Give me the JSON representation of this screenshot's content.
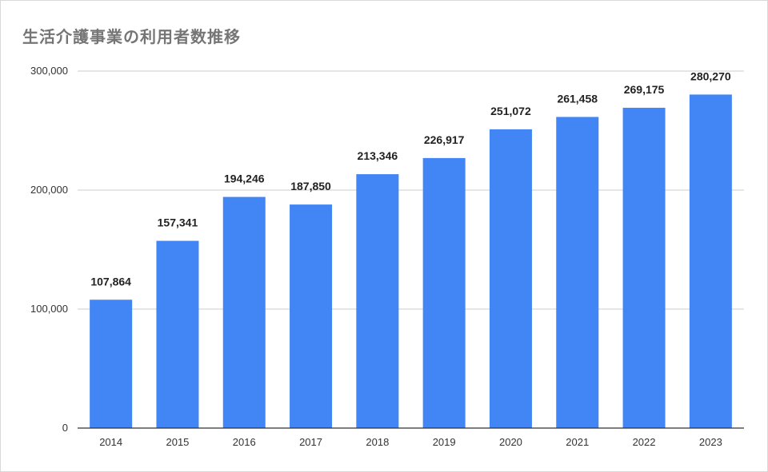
{
  "chart_data": {
    "type": "bar",
    "title": "生活介護事業の利用者数推移",
    "categories": [
      "2014",
      "2015",
      "2016",
      "2017",
      "2018",
      "2019",
      "2020",
      "2021",
      "2022",
      "2023"
    ],
    "values": [
      107864,
      157341,
      194246,
      187850,
      213346,
      226917,
      251072,
      261458,
      269175,
      280270
    ],
    "value_labels": [
      "107,864",
      "157,341",
      "194,246",
      "187,850",
      "213,346",
      "226,917",
      "251,072",
      "261,458",
      "269,175",
      "280,270"
    ],
    "ylim": [
      0,
      300000
    ],
    "yticks": [
      0,
      100000,
      200000,
      300000
    ],
    "ytick_labels": [
      "0",
      "100,000",
      "200,000",
      "300,000"
    ],
    "xlabel": "",
    "ylabel": "",
    "grid": true,
    "legend": "none",
    "bar_color": "#4285f4",
    "grid_color": "#cccccc",
    "axis_color": "#333333"
  }
}
